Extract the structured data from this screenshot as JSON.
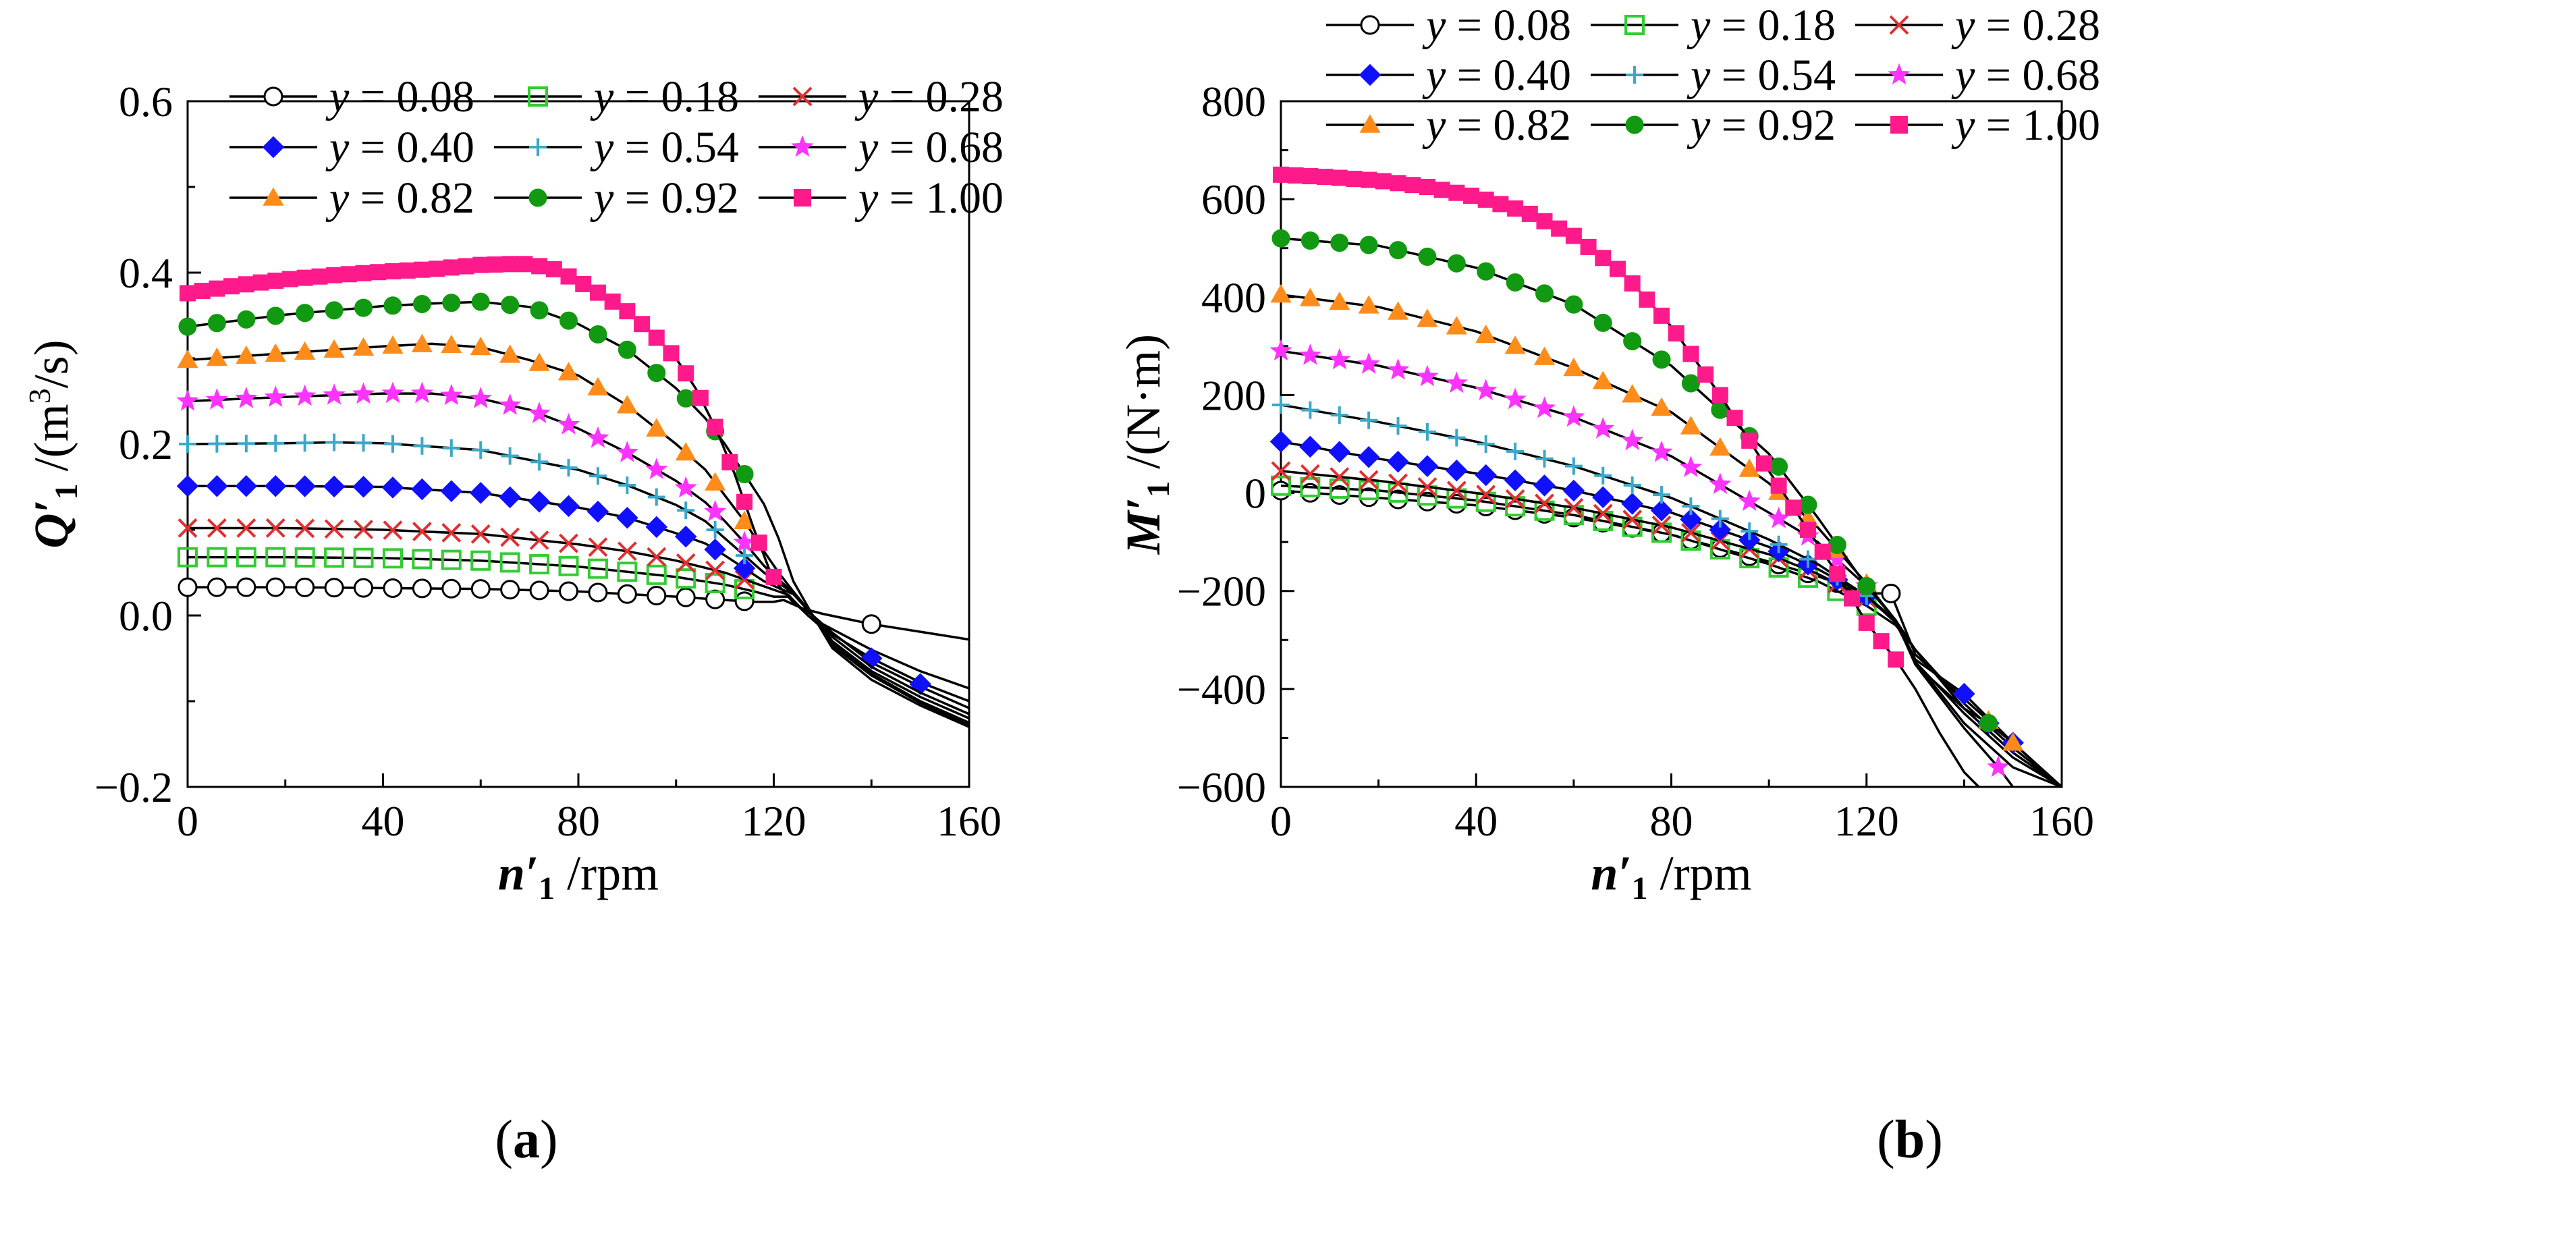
{
  "figure": {
    "panels": [
      {
        "label_open": "(",
        "label_letter": "a",
        "label_close": ")"
      },
      {
        "label_open": "(",
        "label_letter": "b",
        "label_close": ")"
      }
    ]
  },
  "colors": {
    "y008": "#000000",
    "y018": "#33cc33",
    "y028": "#e03030",
    "y040": "#1010ff",
    "y054": "#3aa8c8",
    "y068": "#ff33ff",
    "y082": "#ff8c1a",
    "y092": "#119911",
    "y100": "#ff1a8c"
  },
  "chart_data": [
    {
      "type": "line",
      "x_label": {
        "main": "n′",
        "sub": "1",
        "unit": " /rpm"
      },
      "y_label": {
        "main": "Q′",
        "sub": "1",
        "unit_pre": " /(m",
        "sup": "3",
        "unit_post": "/s)"
      },
      "xlim": [
        0,
        160
      ],
      "ylim": [
        -0.2,
        0.6
      ],
      "x_ticks": [
        0,
        40,
        80,
        120,
        160
      ],
      "x_tick_labels": [
        "0",
        "40",
        "80",
        "120",
        "160"
      ],
      "y_ticks": [
        -0.2,
        0.0,
        0.2,
        0.4,
        0.6
      ],
      "y_tick_labels": [
        "−0.2",
        "0.0",
        "0.2",
        "0.4",
        "0.6"
      ],
      "legend": {
        "columns": 3,
        "placement": "top"
      },
      "series": [
        {
          "name": "y = 0.08",
          "marker": "circle-open",
          "color": "#000000",
          "mx0": 0,
          "mdx": 6,
          "mx1": 114,
          "x": [
            0,
            20,
            40,
            60,
            80,
            100,
            110,
            116,
            120,
            122,
            126,
            130,
            140,
            150,
            160
          ],
          "y": [
            0.033,
            0.033,
            0.032,
            0.031,
            0.028,
            0.022,
            0.018,
            0.016,
            0.016,
            0.018,
            0.008,
            0.002,
            -0.01,
            -0.019,
            -0.028
          ],
          "extra_markers": [
            [
              140,
              -0.01
            ]
          ]
        },
        {
          "name": "y = 0.18",
          "marker": "square-open",
          "color": "#33cc33",
          "mx0": 0,
          "mdx": 6,
          "mx1": 114,
          "x": [
            0,
            20,
            40,
            60,
            80,
            100,
            110,
            116,
            120,
            123,
            127,
            130,
            140,
            150,
            160
          ],
          "y": [
            0.068,
            0.068,
            0.067,
            0.064,
            0.057,
            0.045,
            0.036,
            0.028,
            0.022,
            0.022,
            0.0,
            -0.01,
            -0.04,
            -0.065,
            -0.085
          ]
        },
        {
          "name": "y = 0.28",
          "marker": "x",
          "color": "#e03030",
          "mx0": 0,
          "mdx": 6,
          "mx1": 114,
          "x": [
            0,
            20,
            40,
            60,
            80,
            90,
            100,
            110,
            116,
            120,
            123,
            127,
            130,
            140,
            150,
            160
          ],
          "y": [
            0.102,
            0.102,
            0.1,
            0.095,
            0.083,
            0.075,
            0.064,
            0.05,
            0.038,
            0.03,
            0.024,
            0.0,
            -0.015,
            -0.05,
            -0.078,
            -0.1
          ]
        },
        {
          "name": "y = 0.40",
          "marker": "diamond",
          "color": "#1010ff",
          "mx0": 0,
          "mdx": 6,
          "mx1": 114,
          "x": [
            0,
            20,
            40,
            60,
            80,
            90,
            100,
            106,
            110,
            114,
            118,
            121,
            124,
            128,
            132,
            140,
            150,
            160
          ],
          "y": [
            0.151,
            0.151,
            0.15,
            0.143,
            0.126,
            0.114,
            0.096,
            0.084,
            0.07,
            0.055,
            0.04,
            0.032,
            0.025,
            0.0,
            -0.02,
            -0.055,
            -0.083,
            -0.108
          ],
          "extra_markers": [
            [
              140,
              -0.05
            ],
            [
              150,
              -0.08
            ]
          ]
        },
        {
          "name": "y = 0.54",
          "marker": "plus",
          "color": "#3aa8c8",
          "mx0": 0,
          "mdx": 6,
          "mx1": 114,
          "x": [
            0,
            20,
            30,
            40,
            60,
            80,
            90,
            100,
            106,
            110,
            114,
            118,
            121,
            124,
            128,
            132,
            140,
            150,
            160
          ],
          "y": [
            0.2,
            0.201,
            0.202,
            0.201,
            0.193,
            0.17,
            0.152,
            0.129,
            0.11,
            0.09,
            0.07,
            0.05,
            0.038,
            0.026,
            0.0,
            -0.025,
            -0.06,
            -0.09,
            -0.115
          ]
        },
        {
          "name": "y = 0.68",
          "marker": "star",
          "color": "#ff33ff",
          "mx0": 0,
          "mdx": 6,
          "mx1": 114,
          "x": [
            0,
            20,
            40,
            50,
            60,
            70,
            80,
            90,
            100,
            106,
            110,
            114,
            118,
            121,
            124,
            128,
            132,
            140,
            150,
            160
          ],
          "y": [
            0.25,
            0.255,
            0.259,
            0.259,
            0.253,
            0.24,
            0.218,
            0.19,
            0.157,
            0.132,
            0.11,
            0.085,
            0.058,
            0.042,
            0.027,
            0.0,
            -0.03,
            -0.065,
            -0.095,
            -0.12
          ]
        },
        {
          "name": "y = 0.82",
          "marker": "triangle",
          "color": "#ff8c1a",
          "mx0": 0,
          "mdx": 6,
          "mx1": 114,
          "x": [
            0,
            20,
            40,
            50,
            60,
            70,
            80,
            90,
            100,
            106,
            110,
            114,
            118,
            121,
            124,
            128,
            132,
            140,
            150,
            160
          ],
          "y": [
            0.298,
            0.306,
            0.314,
            0.317,
            0.313,
            0.298,
            0.28,
            0.245,
            0.2,
            0.17,
            0.14,
            0.11,
            0.075,
            0.05,
            0.028,
            0.0,
            -0.032,
            -0.068,
            -0.1,
            -0.125
          ]
        },
        {
          "name": "y = 0.92",
          "marker": "circle",
          "color": "#119911",
          "mx0": 0,
          "mdx": 6,
          "mx1": 114,
          "x": [
            0,
            20,
            40,
            50,
            60,
            70,
            80,
            90,
            100,
            106,
            110,
            114,
            118,
            121,
            124,
            128,
            132,
            140,
            150,
            160
          ],
          "y": [
            0.337,
            0.351,
            0.361,
            0.364,
            0.366,
            0.36,
            0.34,
            0.31,
            0.265,
            0.23,
            0.2,
            0.165,
            0.13,
            0.09,
            0.04,
            0.0,
            -0.035,
            -0.07,
            -0.102,
            -0.128
          ]
        },
        {
          "name": "y = 1.00",
          "marker": "square",
          "color": "#ff1a8c",
          "mx0": 0,
          "mdx": 3,
          "mx1": 120,
          "x": [
            0,
            10,
            20,
            30,
            40,
            50,
            60,
            66,
            70,
            75,
            80,
            86,
            90,
            95,
            100,
            104,
            108,
            112,
            116,
            119,
            121,
            124,
            128,
            132,
            140,
            150,
            160
          ],
          "y": [
            0.376,
            0.385,
            0.392,
            0.397,
            0.401,
            0.404,
            0.409,
            0.41,
            0.41,
            0.404,
            0.39,
            0.37,
            0.355,
            0.33,
            0.3,
            0.265,
            0.22,
            0.165,
            0.1,
            0.055,
            0.035,
            0.015,
            0.0,
            -0.038,
            -0.075,
            -0.105,
            -0.13
          ]
        }
      ]
    },
    {
      "type": "line",
      "x_label": {
        "main": "n′",
        "sub": "1",
        "unit": " /rpm"
      },
      "y_label": {
        "main": "M′",
        "sub": "1",
        "unit": " /(N·m)"
      },
      "xlim": [
        0,
        160
      ],
      "ylim": [
        -600,
        800
      ],
      "x_ticks": [
        0,
        40,
        80,
        120,
        160
      ],
      "x_tick_labels": [
        "0",
        "40",
        "80",
        "120",
        "160"
      ],
      "y_ticks": [
        -600,
        -400,
        -200,
        0,
        200,
        400,
        600,
        800
      ],
      "y_tick_labels": [
        "−600",
        "−400",
        "−200",
        "0",
        "200",
        "400",
        "600",
        "800"
      ],
      "legend": {
        "columns": 3,
        "placement": "top"
      },
      "series": [
        {
          "name": "y = 0.08",
          "marker": "circle-open",
          "color": "#000000",
          "mx0": 0,
          "mdx": 6,
          "mx1": 120,
          "x": [
            0,
            20,
            40,
            60,
            80,
            100,
            110,
            120,
            125,
            130,
            140,
            150,
            160
          ],
          "y": [
            5,
            -10,
            -25,
            -50,
            -85,
            -140,
            -170,
            -205,
            -205,
            -330,
            -420,
            -510,
            -600
          ],
          "extra_markers": [
            [
              125,
              -205
            ]
          ]
        },
        {
          "name": "y = 0.18",
          "marker": "square-open",
          "color": "#33cc33",
          "mx0": 0,
          "mdx": 6,
          "mx1": 120,
          "x": [
            0,
            20,
            40,
            60,
            80,
            100,
            110,
            120,
            126,
            130,
            140,
            150,
            160
          ],
          "y": [
            15,
            5,
            -15,
            -45,
            -85,
            -145,
            -180,
            -230,
            -270,
            -320,
            -430,
            -520,
            -600
          ]
        },
        {
          "name": "y = 0.28",
          "marker": "x",
          "color": "#e03030",
          "mx0": 0,
          "mdx": 6,
          "mx1": 120,
          "x": [
            0,
            20,
            40,
            60,
            80,
            100,
            110,
            120,
            126,
            130,
            140,
            150,
            160
          ],
          "y": [
            45,
            25,
            0,
            -30,
            -70,
            -125,
            -165,
            -215,
            -260,
            -320,
            -440,
            -530,
            -600
          ]
        },
        {
          "name": "y = 0.40",
          "marker": "diamond",
          "color": "#1010ff",
          "mx0": 0,
          "mdx": 6,
          "mx1": 120,
          "x": [
            0,
            20,
            40,
            60,
            80,
            100,
            110,
            120,
            126,
            130,
            140,
            150,
            160
          ],
          "y": [
            105,
            70,
            40,
            5,
            -40,
            -110,
            -155,
            -210,
            -260,
            -340,
            -410,
            -510,
            -600
          ],
          "extra_markers": [
            [
              140,
              -410
            ],
            [
              145,
              -470
            ],
            [
              150,
              -510
            ]
          ]
        },
        {
          "name": "y = 0.54",
          "marker": "plus",
          "color": "#3aa8c8",
          "mx0": 0,
          "mdx": 6,
          "mx1": 120,
          "x": [
            0,
            20,
            40,
            60,
            80,
            100,
            110,
            120,
            126,
            130,
            140,
            150,
            160
          ],
          "y": [
            180,
            145,
            105,
            55,
            -10,
            -95,
            -145,
            -210,
            -265,
            -345,
            -450,
            -540,
            -600
          ]
        },
        {
          "name": "y = 0.68",
          "marker": "star",
          "color": "#ff33ff",
          "mx0": 0,
          "mdx": 6,
          "mx1": 120,
          "x": [
            0,
            20,
            40,
            60,
            80,
            100,
            110,
            120,
            126,
            130,
            140,
            147,
            150
          ],
          "y": [
            290,
            260,
            215,
            155,
            75,
            -40,
            -100,
            -190,
            -260,
            -350,
            -480,
            -560,
            -600
          ],
          "extra_markers": [
            [
              147,
              -560
            ]
          ]
        },
        {
          "name": "y = 0.82",
          "marker": "triangle",
          "color": "#ff8c1a",
          "mx0": 0,
          "mdx": 6,
          "mx1": 120,
          "x": [
            0,
            20,
            40,
            60,
            80,
            100,
            110,
            120,
            126,
            130,
            140,
            145,
            150
          ],
          "y": [
            405,
            380,
            330,
            255,
            165,
            20,
            -70,
            -185,
            -260,
            -350,
            -440,
            -470,
            -510
          ],
          "extra_markers": [
            [
              145,
              -465
            ],
            [
              150,
              -510
            ]
          ]
        },
        {
          "name": "y = 0.92",
          "marker": "circle",
          "color": "#119911",
          "mx0": 0,
          "mdx": 6,
          "mx1": 120,
          "x": [
            0,
            20,
            40,
            60,
            80,
            100,
            110,
            120,
            126,
            130,
            140,
            150,
            160
          ],
          "y": [
            520,
            505,
            460,
            385,
            260,
            80,
            -50,
            -190,
            -260,
            -345,
            -470,
            -560,
            -600
          ],
          "extra_markers": [
            [
              145,
              -470
            ]
          ]
        },
        {
          "name": "y = 1.00",
          "marker": "square",
          "color": "#ff1a8c",
          "mx0": 0,
          "mdx": 3,
          "mx1": 126,
          "x": [
            0,
            10,
            20,
            30,
            40,
            50,
            60,
            70,
            80,
            90,
            100,
            108,
            114,
            120,
            126,
            130,
            135,
            140,
            143
          ],
          "y": [
            650,
            645,
            638,
            625,
            605,
            575,
            525,
            450,
            340,
            200,
            45,
            -75,
            -165,
            -265,
            -340,
            -400,
            -490,
            -570,
            -600
          ]
        }
      ]
    }
  ]
}
